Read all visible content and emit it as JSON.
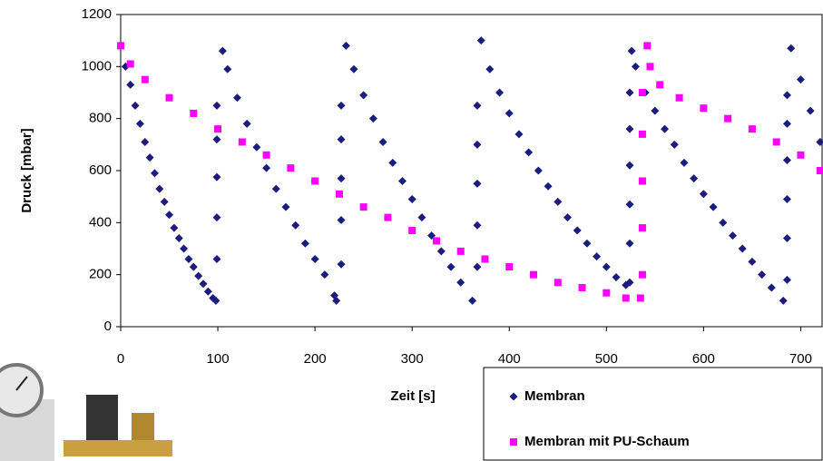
{
  "chart_data": {
    "type": "scatter",
    "x_label": "Zeit [s]",
    "y_label": "Druck [mbar]",
    "xlim": [
      0,
      722
    ],
    "ylim": [
      0,
      1200
    ],
    "xticks": [
      0,
      100,
      200,
      300,
      400,
      500,
      600,
      700
    ],
    "yticks": [
      0,
      200,
      400,
      600,
      800,
      1000,
      1200
    ],
    "grid": false,
    "legend": "bottom-right",
    "series": [
      {
        "name": "Membran",
        "color": "#1c1c80",
        "marker": "diamond",
        "x": [
          5,
          10,
          15,
          20,
          25,
          30,
          35,
          40,
          45,
          50,
          55,
          60,
          65,
          70,
          75,
          80,
          85,
          90,
          95,
          98,
          99,
          99,
          99,
          99,
          99,
          105,
          110,
          120,
          130,
          140,
          150,
          160,
          170,
          180,
          190,
          200,
          210,
          220,
          222,
          227,
          227,
          227,
          227,
          227,
          232,
          240,
          250,
          260,
          270,
          280,
          290,
          300,
          310,
          320,
          330,
          340,
          350,
          362,
          367,
          367,
          367,
          367,
          367,
          371,
          380,
          390,
          400,
          410,
          420,
          430,
          440,
          450,
          460,
          470,
          480,
          490,
          500,
          510,
          520,
          524,
          524,
          524,
          524,
          524,
          524,
          526,
          530,
          540,
          550,
          560,
          570,
          580,
          590,
          600,
          610,
          620,
          630,
          640,
          650,
          660,
          670,
          682,
          686,
          686,
          686,
          686,
          686,
          686,
          690,
          700,
          710,
          720
        ],
        "values": [
          1000,
          930,
          850,
          780,
          710,
          650,
          590,
          530,
          480,
          430,
          380,
          340,
          300,
          260,
          230,
          195,
          165,
          135,
          110,
          100,
          260,
          420,
          575,
          720,
          850,
          1060,
          990,
          880,
          780,
          690,
          610,
          530,
          460,
          390,
          320,
          260,
          200,
          120,
          100,
          240,
          410,
          570,
          720,
          850,
          1080,
          990,
          890,
          800,
          710,
          630,
          560,
          490,
          420,
          350,
          290,
          230,
          170,
          100,
          230,
          390,
          550,
          700,
          850,
          1100,
          990,
          900,
          820,
          740,
          670,
          600,
          540,
          480,
          420,
          370,
          320,
          270,
          230,
          190,
          160,
          170,
          320,
          470,
          620,
          760,
          900,
          1060,
          1000,
          900,
          830,
          760,
          700,
          630,
          570,
          510,
          460,
          400,
          350,
          300,
          250,
          200,
          150,
          100,
          180,
          340,
          490,
          640,
          780,
          890,
          1070,
          950,
          830,
          710
        ]
      },
      {
        "name": "Membran mit PU-Schaum",
        "color": "#ff00ff",
        "marker": "square",
        "x": [
          0,
          10,
          25,
          50,
          75,
          100,
          125,
          150,
          175,
          200,
          225,
          250,
          275,
          300,
          325,
          350,
          375,
          400,
          425,
          450,
          475,
          500,
          520,
          535,
          537,
          537,
          537,
          537,
          537,
          542,
          545,
          555,
          575,
          600,
          625,
          650,
          675,
          700,
          720
        ],
        "values": [
          1080,
          1010,
          950,
          880,
          820,
          760,
          710,
          660,
          610,
          560,
          510,
          460,
          420,
          370,
          330,
          290,
          260,
          230,
          200,
          170,
          150,
          130,
          110,
          110,
          200,
          380,
          560,
          740,
          900,
          1080,
          1000,
          930,
          880,
          840,
          800,
          760,
          710,
          660,
          600
        ]
      }
    ]
  }
}
